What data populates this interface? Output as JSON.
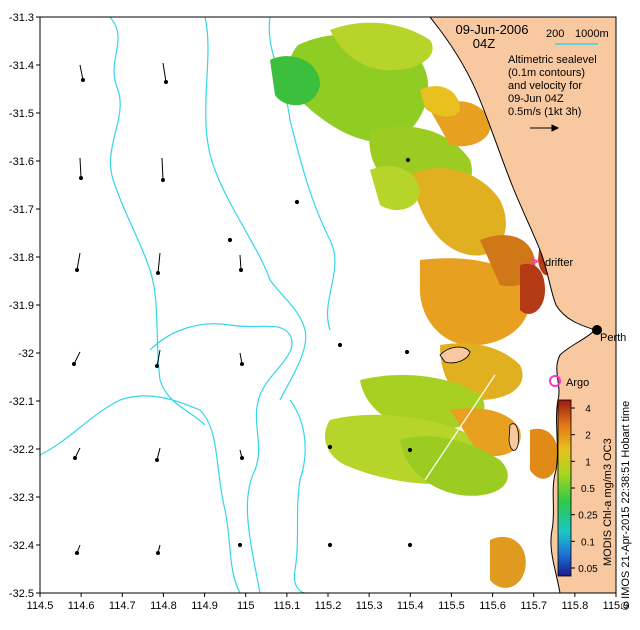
{
  "map": {
    "date": "09-Jun-2006",
    "hour": "04Z",
    "scale_bar": {
      "short_label": "200",
      "long_label": "1000m"
    },
    "legend_lines": [
      "Altimetric sealevel",
      "(0.1m contours)",
      "and velocity for",
      "09-Jun 04Z",
      "0.5m/s (1kt 3h)"
    ],
    "places": {
      "city": "Perth",
      "drifter": "drifter",
      "argo": "Argo"
    },
    "colorbar": {
      "ticks": [
        "4",
        "2",
        "1",
        "0.5",
        "0.25",
        "0.1",
        "0.05"
      ],
      "title": "MODIS Chl-a mg/m3 OC3"
    },
    "credit": "© IMOS 21-Apr-2015 22:38:51 Hobart time",
    "lon_ticks": [
      "114.5",
      "114.6",
      "114.7",
      "114.8",
      "114.9",
      "115",
      "115.1",
      "115.2",
      "115.3",
      "115.4",
      "115.5",
      "115.6",
      "115.7",
      "115.8",
      "115.9"
    ],
    "lat_ticks": [
      "-31.3",
      "-31.4",
      "-31.5",
      "-31.6",
      "-31.7",
      "-31.8",
      "-31.9",
      "-32",
      "-32.1",
      "-32.2",
      "-32.3",
      "-32.4",
      "-32.5"
    ],
    "colors": {
      "land": "#f8c8a0",
      "contour": "#33d6e8",
      "marker": "#ff33cc",
      "chl_high": "#b33a14",
      "chl_mid": "#e8a020",
      "chl_low": "#88cc22"
    }
  }
}
